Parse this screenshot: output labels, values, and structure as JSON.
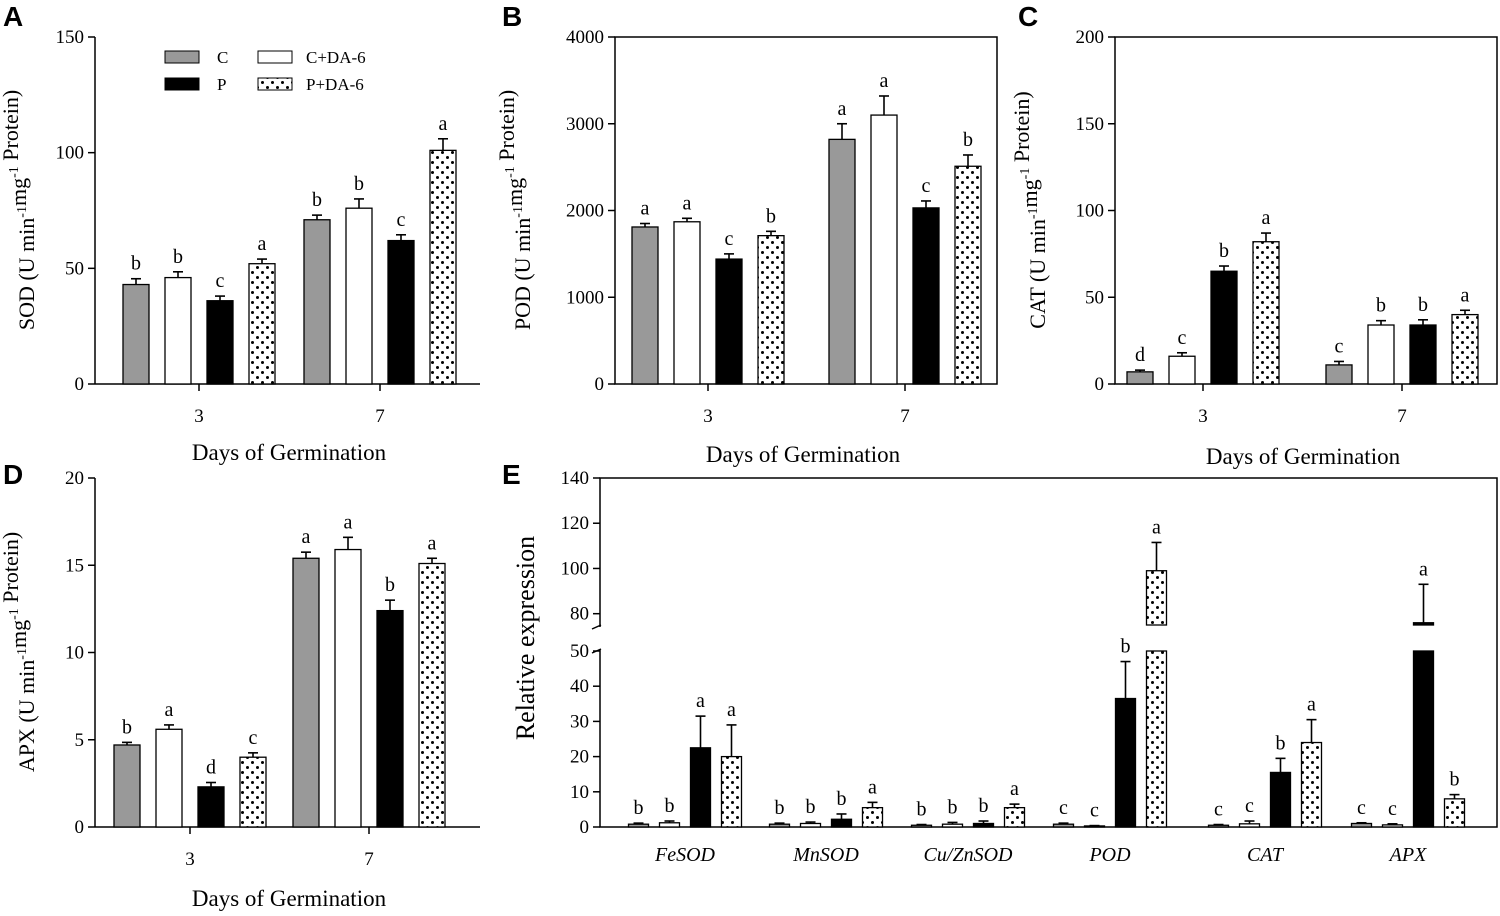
{
  "figure": {
    "colors": {
      "C": "#999999",
      "C+DA-6": "#ffffff",
      "P": "#000000",
      "P+DA-6": "dots"
    }
  },
  "legend": {
    "entries": [
      {
        "key": "C",
        "label": "C"
      },
      {
        "key": "C+DA-6",
        "label": "C+DA-6"
      },
      {
        "key": "P",
        "label": "P"
      },
      {
        "key": "P+DA-6",
        "label": "P+DA-6"
      }
    ]
  },
  "chart_data": [
    {
      "panel": "A",
      "type": "bar",
      "ylabel": "SOD (U min-1mg-1 Protein)",
      "xlabel": "Days of Germination",
      "categories": [
        "3",
        "7"
      ],
      "ylim": [
        0,
        150
      ],
      "yticks": [
        "0",
        "50",
        "100",
        "150"
      ],
      "series": [
        {
          "name": "C",
          "values": [
            43,
            71
          ],
          "errors": [
            2.5,
            2
          ],
          "letters": [
            "b",
            "b"
          ]
        },
        {
          "name": "C+DA-6",
          "values": [
            46,
            76
          ],
          "errors": [
            2.5,
            4
          ],
          "letters": [
            "b",
            "b"
          ]
        },
        {
          "name": "P",
          "values": [
            36,
            62
          ],
          "errors": [
            2,
            2.5
          ],
          "letters": [
            "c",
            "c"
          ]
        },
        {
          "name": "P+DA-6",
          "values": [
            52,
            101
          ],
          "errors": [
            2,
            5
          ],
          "letters": [
            "a",
            "a"
          ]
        }
      ]
    },
    {
      "panel": "B",
      "type": "bar",
      "ylabel": "POD (U min-1mg-1 Protein)",
      "xlabel": "Days of Germination",
      "categories": [
        "3",
        "7"
      ],
      "ylim": [
        0,
        4000
      ],
      "yticks": [
        "0",
        "1000",
        "2000",
        "3000",
        "4000"
      ],
      "series": [
        {
          "name": "C",
          "values": [
            1810,
            2820
          ],
          "errors": [
            40,
            180
          ],
          "letters": [
            "a",
            "a"
          ]
        },
        {
          "name": "C+DA-6",
          "values": [
            1870,
            3100
          ],
          "errors": [
            40,
            220
          ],
          "letters": [
            "a",
            "a"
          ]
        },
        {
          "name": "P",
          "values": [
            1440,
            2030
          ],
          "errors": [
            60,
            80
          ],
          "letters": [
            "c",
            "c"
          ]
        },
        {
          "name": "P+DA-6",
          "values": [
            1710,
            2510
          ],
          "errors": [
            50,
            130
          ],
          "letters": [
            "b",
            "b"
          ]
        }
      ]
    },
    {
      "panel": "C",
      "type": "bar",
      "ylabel": "CAT (U min-1mg-1 Protein)",
      "xlabel": "Days of Germination",
      "categories": [
        "3",
        "7"
      ],
      "ylim": [
        0,
        200
      ],
      "yticks": [
        "0",
        "50",
        "100",
        "150",
        "200"
      ],
      "series": [
        {
          "name": "C",
          "values": [
            7,
            11
          ],
          "errors": [
            1,
            2
          ],
          "letters": [
            "d",
            "c"
          ]
        },
        {
          "name": "C+DA-6",
          "values": [
            16,
            34
          ],
          "errors": [
            2,
            2.5
          ],
          "letters": [
            "c",
            "b"
          ]
        },
        {
          "name": "P",
          "values": [
            65,
            34
          ],
          "errors": [
            3,
            3
          ],
          "letters": [
            "b",
            "b"
          ]
        },
        {
          "name": "P+DA-6",
          "values": [
            82,
            40
          ],
          "errors": [
            5,
            2.5
          ],
          "letters": [
            "a",
            "a"
          ]
        }
      ]
    },
    {
      "panel": "D",
      "type": "bar",
      "ylabel": "APX (U min-1mg-1 Protein)",
      "xlabel": "Days of Germination",
      "categories": [
        "3",
        "7"
      ],
      "ylim": [
        0,
        20
      ],
      "yticks": [
        "0",
        "5",
        "10",
        "15",
        "20"
      ],
      "series": [
        {
          "name": "C",
          "values": [
            4.7,
            15.4
          ],
          "errors": [
            0.15,
            0.35
          ],
          "letters": [
            "b",
            "a"
          ]
        },
        {
          "name": "C+DA-6",
          "values": [
            5.6,
            15.9
          ],
          "errors": [
            0.25,
            0.7
          ],
          "letters": [
            "a",
            "a"
          ]
        },
        {
          "name": "P",
          "values": [
            2.3,
            12.4
          ],
          "errors": [
            0.25,
            0.6
          ],
          "letters": [
            "d",
            "b"
          ]
        },
        {
          "name": "P+DA-6",
          "values": [
            4.0,
            15.1
          ],
          "errors": [
            0.25,
            0.3
          ],
          "letters": [
            "c",
            "a"
          ]
        }
      ]
    },
    {
      "panel": "E",
      "type": "bar",
      "ylabel": "Relative  expression",
      "xlabel": "",
      "categories": [
        "FeSOD",
        "MnSOD",
        "Cu/ZnSOD",
        "POD",
        "CAT",
        "APX"
      ],
      "ylim": [
        0,
        140
      ],
      "axis_break": [
        55,
        75
      ],
      "yticks": [
        "0",
        "10",
        "20",
        "30",
        "40",
        "50",
        "80",
        "100",
        "120",
        "140"
      ],
      "series": [
        {
          "name": "C",
          "values": [
            0.8,
            0.8,
            0.5,
            0.8,
            0.5,
            1.0
          ],
          "errors": [
            0.3,
            0.3,
            0.2,
            0.3,
            0.2,
            0.2
          ],
          "letters": [
            "b",
            "b",
            "b",
            "c",
            "c",
            "c"
          ]
        },
        {
          "name": "C+DA-6",
          "values": [
            1.2,
            1.0,
            0.8,
            0.3,
            0.9,
            0.6
          ],
          "errors": [
            0.5,
            0.4,
            0.5,
            0.1,
            0.8,
            0.3
          ],
          "letters": [
            "b",
            "b",
            "b",
            "c",
            "c",
            "c"
          ]
        },
        {
          "name": "P",
          "values": [
            22.5,
            2.2,
            1.0,
            36.5,
            15.5,
            76
          ],
          "errors": [
            9,
            1.5,
            0.7,
            10.5,
            4,
            17
          ],
          "letters": [
            "a",
            "b",
            "b",
            "b",
            "b",
            "a"
          ]
        },
        {
          "name": "P+DA-6",
          "values": [
            20,
            5.5,
            5.5,
            99,
            24,
            8
          ],
          "errors": [
            9,
            1.5,
            1,
            12.5,
            6.5,
            1.2
          ],
          "letters": [
            "a",
            "a",
            "a",
            "a",
            "a",
            "b"
          ]
        }
      ]
    }
  ]
}
